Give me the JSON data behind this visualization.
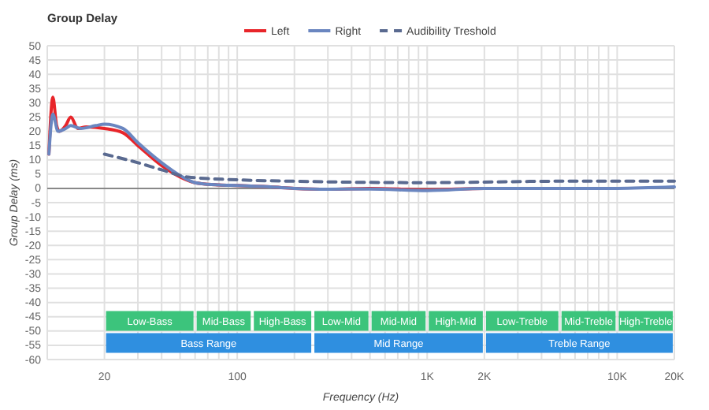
{
  "chart_data": {
    "type": "line",
    "title": "Group Delay",
    "xlabel": "Frequency (Hz)",
    "ylabel": "Group Delay (ms)",
    "log": "x",
    "grid": true,
    "legend": "top",
    "line_style": "solid",
    "marker": "none",
    "xlim": [
      10,
      20000
    ],
    "ylim": [
      -60,
      50
    ],
    "xticks": [
      {
        "value": 20,
        "label": "20"
      },
      {
        "value": 30,
        "label": null
      },
      {
        "value": 40,
        "label": null
      },
      {
        "value": 50,
        "label": null
      },
      {
        "value": 60,
        "label": null
      },
      {
        "value": 70,
        "label": null
      },
      {
        "value": 80,
        "label": null
      },
      {
        "value": 90,
        "label": null
      },
      {
        "value": 100,
        "label": "100"
      },
      {
        "value": 200,
        "label": null
      },
      {
        "value": 300,
        "label": null
      },
      {
        "value": 400,
        "label": null
      },
      {
        "value": 500,
        "label": null
      },
      {
        "value": 600,
        "label": null
      },
      {
        "value": 700,
        "label": null
      },
      {
        "value": 800,
        "label": null
      },
      {
        "value": 900,
        "label": null
      },
      {
        "value": 1000,
        "label": "1K"
      },
      {
        "value": 2000,
        "label": "2K"
      },
      {
        "value": 3000,
        "label": null
      },
      {
        "value": 4000,
        "label": null
      },
      {
        "value": 5000,
        "label": null
      },
      {
        "value": 6000,
        "label": null
      },
      {
        "value": 7000,
        "label": null
      },
      {
        "value": 8000,
        "label": null
      },
      {
        "value": 9000,
        "label": null
      },
      {
        "value": 10000,
        "label": "10K"
      },
      {
        "value": 20000,
        "label": "20K"
      }
    ],
    "yticks": [
      -60,
      -55,
      -50,
      -45,
      -40,
      -35,
      -30,
      -25,
      -20,
      -15,
      -10,
      -5,
      0,
      5,
      10,
      15,
      20,
      25,
      30,
      35,
      40,
      45,
      50
    ],
    "ref_lines": [
      {
        "axis": "y",
        "value": 0,
        "label": null,
        "color": "#888888"
      }
    ],
    "bands": [
      {
        "axis": "x",
        "from": 20,
        "to": 60,
        "label": "Low-Bass",
        "color": "#3cc47c"
      },
      {
        "axis": "x",
        "from": 60,
        "to": 120,
        "label": "Mid-Bass",
        "color": "#3cc47c"
      },
      {
        "axis": "x",
        "from": 120,
        "to": 250,
        "label": "High-Bass",
        "color": "#3cc47c"
      },
      {
        "axis": "x",
        "from": 250,
        "to": 500,
        "label": "Low-Mid",
        "color": "#3cc47c"
      },
      {
        "axis": "x",
        "from": 500,
        "to": 1000,
        "label": "Mid-Mid",
        "color": "#3cc47c"
      },
      {
        "axis": "x",
        "from": 1000,
        "to": 2000,
        "label": "High-Mid",
        "color": "#3cc47c"
      },
      {
        "axis": "x",
        "from": 2000,
        "to": 5000,
        "label": "Low-Treble",
        "color": "#3cc47c"
      },
      {
        "axis": "x",
        "from": 5000,
        "to": 10000,
        "label": "Mid-Treble",
        "color": "#3cc47c"
      },
      {
        "axis": "x",
        "from": 10000,
        "to": 20000,
        "label": "High-Treble",
        "color": "#3cc47c"
      },
      {
        "axis": "x",
        "from": 20,
        "to": 250,
        "label": "Bass Range",
        "color": "#2f8fe0"
      },
      {
        "axis": "x",
        "from": 250,
        "to": 2000,
        "label": "Mid Range",
        "color": "#2f8fe0"
      },
      {
        "axis": "x",
        "from": 2000,
        "to": 20000,
        "label": "Treble Range",
        "color": "#2f8fe0"
      }
    ],
    "series": [
      {
        "name": "Left",
        "color": "#e8252a",
        "x": [
          10.2,
          10.7,
          11.2,
          11.6,
          12.5,
          13.3,
          14.5,
          16,
          20,
          25,
          30,
          40,
          50,
          60,
          80,
          100,
          150,
          200,
          300,
          500,
          1000,
          2000,
          5000
        ],
        "values": [
          12,
          32,
          22,
          20,
          22,
          25,
          21,
          21.5,
          21,
          19.5,
          15,
          8,
          4,
          2,
          1.2,
          1,
          0.5,
          0,
          -0.3,
          0,
          -0.5,
          0,
          0
        ]
      },
      {
        "name": "Right",
        "color": "#6a86c0",
        "x": [
          10.2,
          10.7,
          11.4,
          12.5,
          13.3,
          15,
          18,
          20,
          25,
          30,
          40,
          50,
          60,
          80,
          100,
          150,
          200,
          300,
          500,
          1000,
          2000,
          5000,
          10000,
          20000
        ],
        "values": [
          12,
          26,
          20,
          21,
          22,
          21,
          22,
          22.5,
          21,
          16,
          9,
          4.5,
          2,
          1.2,
          1,
          0.5,
          0,
          -0.3,
          -0.2,
          -0.8,
          0,
          0,
          0,
          0.5
        ]
      },
      {
        "name": "Audibility Treshold",
        "color": "#5a6a90",
        "line_style": "dashed",
        "x": [
          20,
          30,
          40,
          55,
          100,
          200,
          1000,
          5000,
          20000
        ],
        "values": [
          12,
          9,
          6.5,
          4,
          3,
          2.5,
          2,
          2.5,
          2.5
        ]
      }
    ]
  }
}
